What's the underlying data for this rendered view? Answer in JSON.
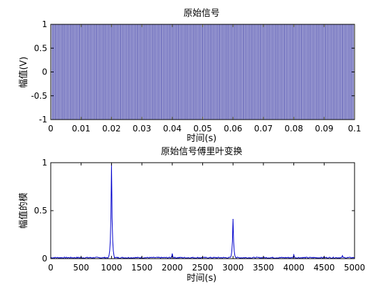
{
  "chart_data": [
    {
      "type": "line",
      "title": "原始信号",
      "xlabel": "时间(s)",
      "ylabel": "幅值(V)",
      "xlim": [
        0,
        0.1
      ],
      "ylim": [
        -1,
        1
      ],
      "xticks": [
        "0",
        "0.01",
        "0.02",
        "0.03",
        "0.04",
        "0.05",
        "0.06",
        "0.07",
        "0.08",
        "0.09",
        "0.1"
      ],
      "yticks": [
        "-1",
        "-0.5",
        "0",
        "0.5",
        "1"
      ],
      "grid": false,
      "series": [
        {
          "components": [
            {
              "frequency_hz": 1000,
              "amplitude": 1
            },
            {
              "frequency_hz": 3000,
              "amplitude": 0.4
            }
          ],
          "display_range": [
            -1,
            1
          ],
          "color": "#00008b"
        }
      ]
    },
    {
      "type": "line",
      "title": "原始信号傅里叶变换",
      "xlabel": "时间(s)",
      "ylabel": "幅值的模",
      "xlim": [
        0,
        5000
      ],
      "ylim": [
        0,
        1
      ],
      "xticks": [
        "0",
        "500",
        "1000",
        "1500",
        "2000",
        "2500",
        "3000",
        "3500",
        "4000",
        "4500",
        "5000"
      ],
      "yticks": [
        "0",
        "0.5",
        "1"
      ],
      "grid": false,
      "series": [
        {
          "peaks": [
            {
              "x": 1000,
              "y": 0.98
            },
            {
              "x": 2000,
              "y": 0.05
            },
            {
              "x": 3000,
              "y": 0.41
            },
            {
              "x": 4000,
              "y": 0.04
            },
            {
              "x": 4800,
              "y": 0.03
            }
          ],
          "baseline": 0.01,
          "color": "#0000cc"
        }
      ]
    }
  ]
}
